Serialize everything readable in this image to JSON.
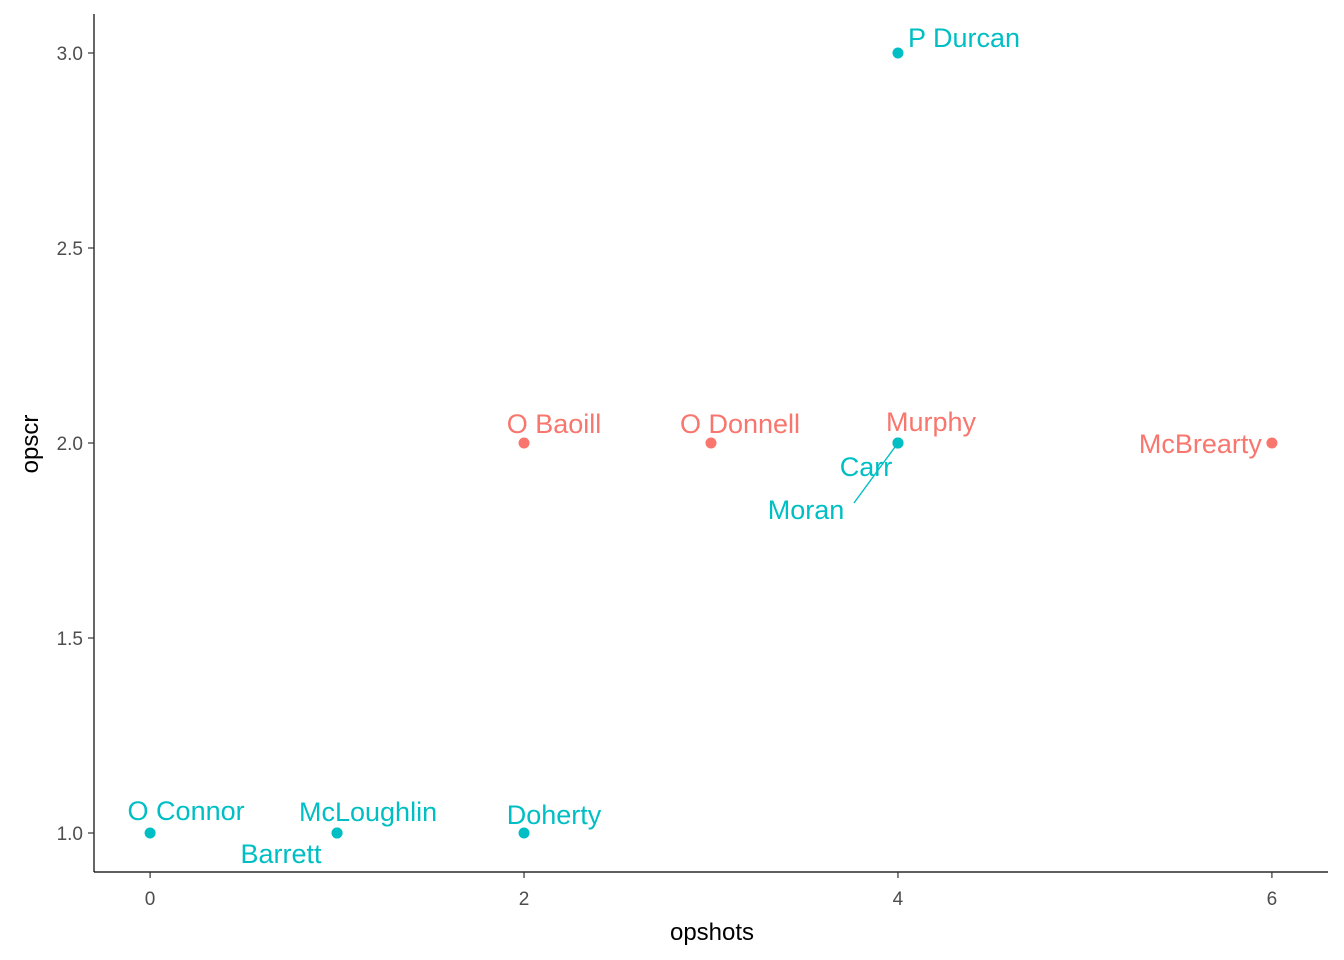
{
  "chart_data": {
    "type": "scatter",
    "xlabel": "opshots",
    "ylabel": "opscr",
    "xlim": [
      -0.3,
      6.3
    ],
    "ylim": [
      0.9,
      3.1
    ],
    "x_ticks": [
      0,
      2,
      4,
      6
    ],
    "x_tick_labels": [
      "0",
      "2",
      "4",
      "6"
    ],
    "y_ticks": [
      1.0,
      1.5,
      2.0,
      2.5,
      3.0
    ],
    "y_tick_labels": [
      "1.0",
      "1.5",
      "2.0",
      "2.5",
      "3.0"
    ],
    "grid": false,
    "legend": "none",
    "colors": {
      "group_a": "#F8766D",
      "group_b": "#00BFC4"
    },
    "points": [
      {
        "label": "P Durcan",
        "x": 4,
        "y": 3,
        "group": "group_b"
      },
      {
        "label": "O Baoill",
        "x": 2,
        "y": 2,
        "group": "group_a"
      },
      {
        "label": "O Donnell",
        "x": 3,
        "y": 2,
        "group": "group_a"
      },
      {
        "label": "Murphy",
        "x": 4,
        "y": 2,
        "group": "group_a"
      },
      {
        "label": "Carr",
        "x": 4,
        "y": 2,
        "group": "group_b"
      },
      {
        "label": "Moran",
        "x": 4,
        "y": 2,
        "group": "group_b"
      },
      {
        "label": "McBrearty",
        "x": 6,
        "y": 2,
        "group": "group_a"
      },
      {
        "label": "O Connor",
        "x": 0,
        "y": 1,
        "group": "group_b"
      },
      {
        "label": "McLoughlin",
        "x": 1,
        "y": 1,
        "group": "group_b"
      },
      {
        "label": "Barrett",
        "x": 1,
        "y": 1,
        "group": "group_b"
      },
      {
        "label": "Doherty",
        "x": 2,
        "y": 1,
        "group": "group_b"
      }
    ]
  }
}
